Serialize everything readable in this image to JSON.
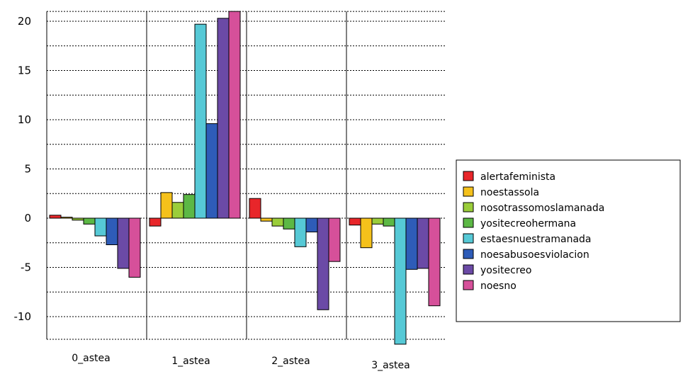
{
  "chart_data": {
    "type": "bar",
    "categories": [
      "0_astea",
      "1_astea",
      "2_astea",
      "3_astea"
    ],
    "series": [
      {
        "name": "alertafeminista",
        "color": "#e8262a",
        "values": [
          0.3,
          -0.8,
          2.0,
          -0.7
        ]
      },
      {
        "name": "noestassola",
        "color": "#f5c11b",
        "values": [
          0.1,
          2.6,
          -0.3,
          -3.0
        ]
      },
      {
        "name": "nosotrassomoslamanada",
        "color": "#9acd3a",
        "values": [
          -0.2,
          1.6,
          -0.8,
          -0.6
        ]
      },
      {
        "name": "yositecreohermana",
        "color": "#5cb845",
        "values": [
          -0.6,
          2.4,
          -1.1,
          -0.8
        ]
      },
      {
        "name": "estaesnuestramanada",
        "color": "#56c9d6",
        "values": [
          -1.8,
          19.7,
          -2.9,
          -12.8
        ]
      },
      {
        "name": "noesabusoesviolacion",
        "color": "#2e5cb8",
        "values": [
          -2.7,
          9.6,
          -1.4,
          -5.2
        ]
      },
      {
        "name": "yositecreo",
        "color": "#6b4aa6",
        "values": [
          -5.1,
          20.3,
          -9.3,
          -5.1
        ]
      },
      {
        "name": "noesno",
        "color": "#d6509a",
        "values": [
          -6.0,
          21.0,
          -4.4,
          -8.9
        ]
      }
    ],
    "yticks": [
      20,
      15,
      10,
      5,
      0,
      -5,
      -10
    ],
    "ylim": [
      -12.3,
      21.0
    ],
    "grid": "horizontal dotted",
    "legend_position": "right"
  }
}
